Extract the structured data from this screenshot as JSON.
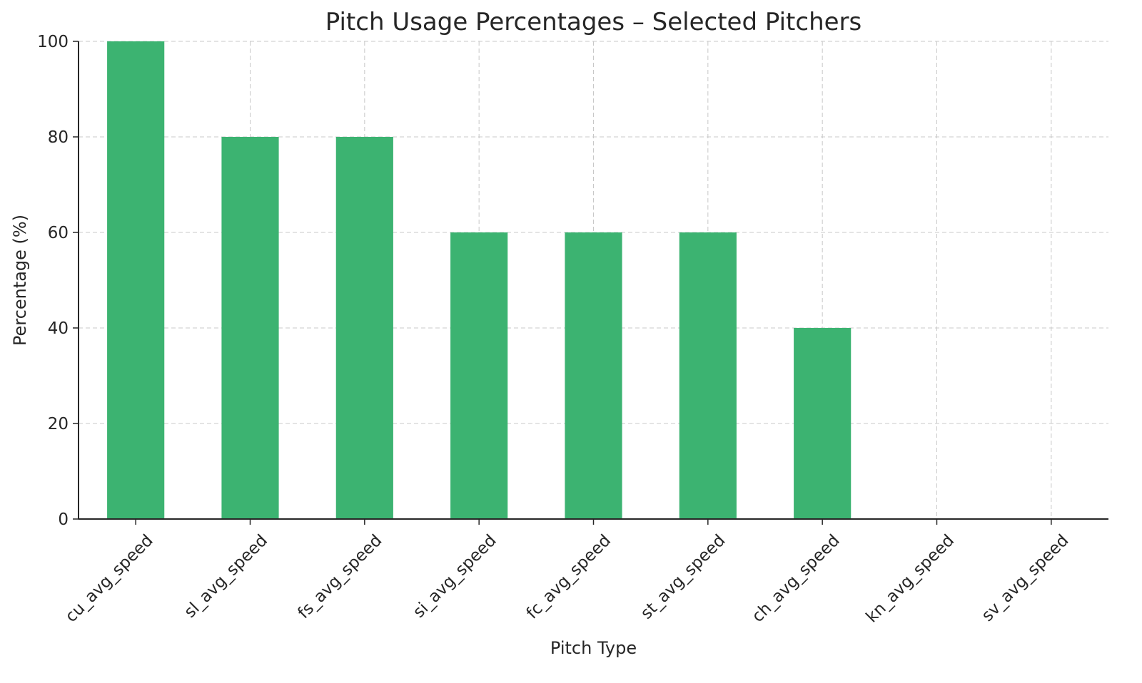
{
  "chart_data": {
    "type": "bar",
    "title": "Pitch Usage Percentages – Selected Pitchers",
    "xlabel": "Pitch Type",
    "ylabel": "Percentage (%)",
    "categories": [
      "cu_avg_speed",
      "sl_avg_speed",
      "fs_avg_speed",
      "si_avg_speed",
      "fc_avg_speed",
      "st_avg_speed",
      "ch_avg_speed",
      "kn_avg_speed",
      "sv_avg_speed"
    ],
    "values": [
      100,
      80,
      80,
      60,
      60,
      60,
      40,
      0,
      0
    ],
    "ylim": [
      0,
      100
    ],
    "yticks": [
      0,
      20,
      40,
      60,
      80,
      100
    ],
    "grid": true,
    "bar_color": "#3cb371"
  }
}
